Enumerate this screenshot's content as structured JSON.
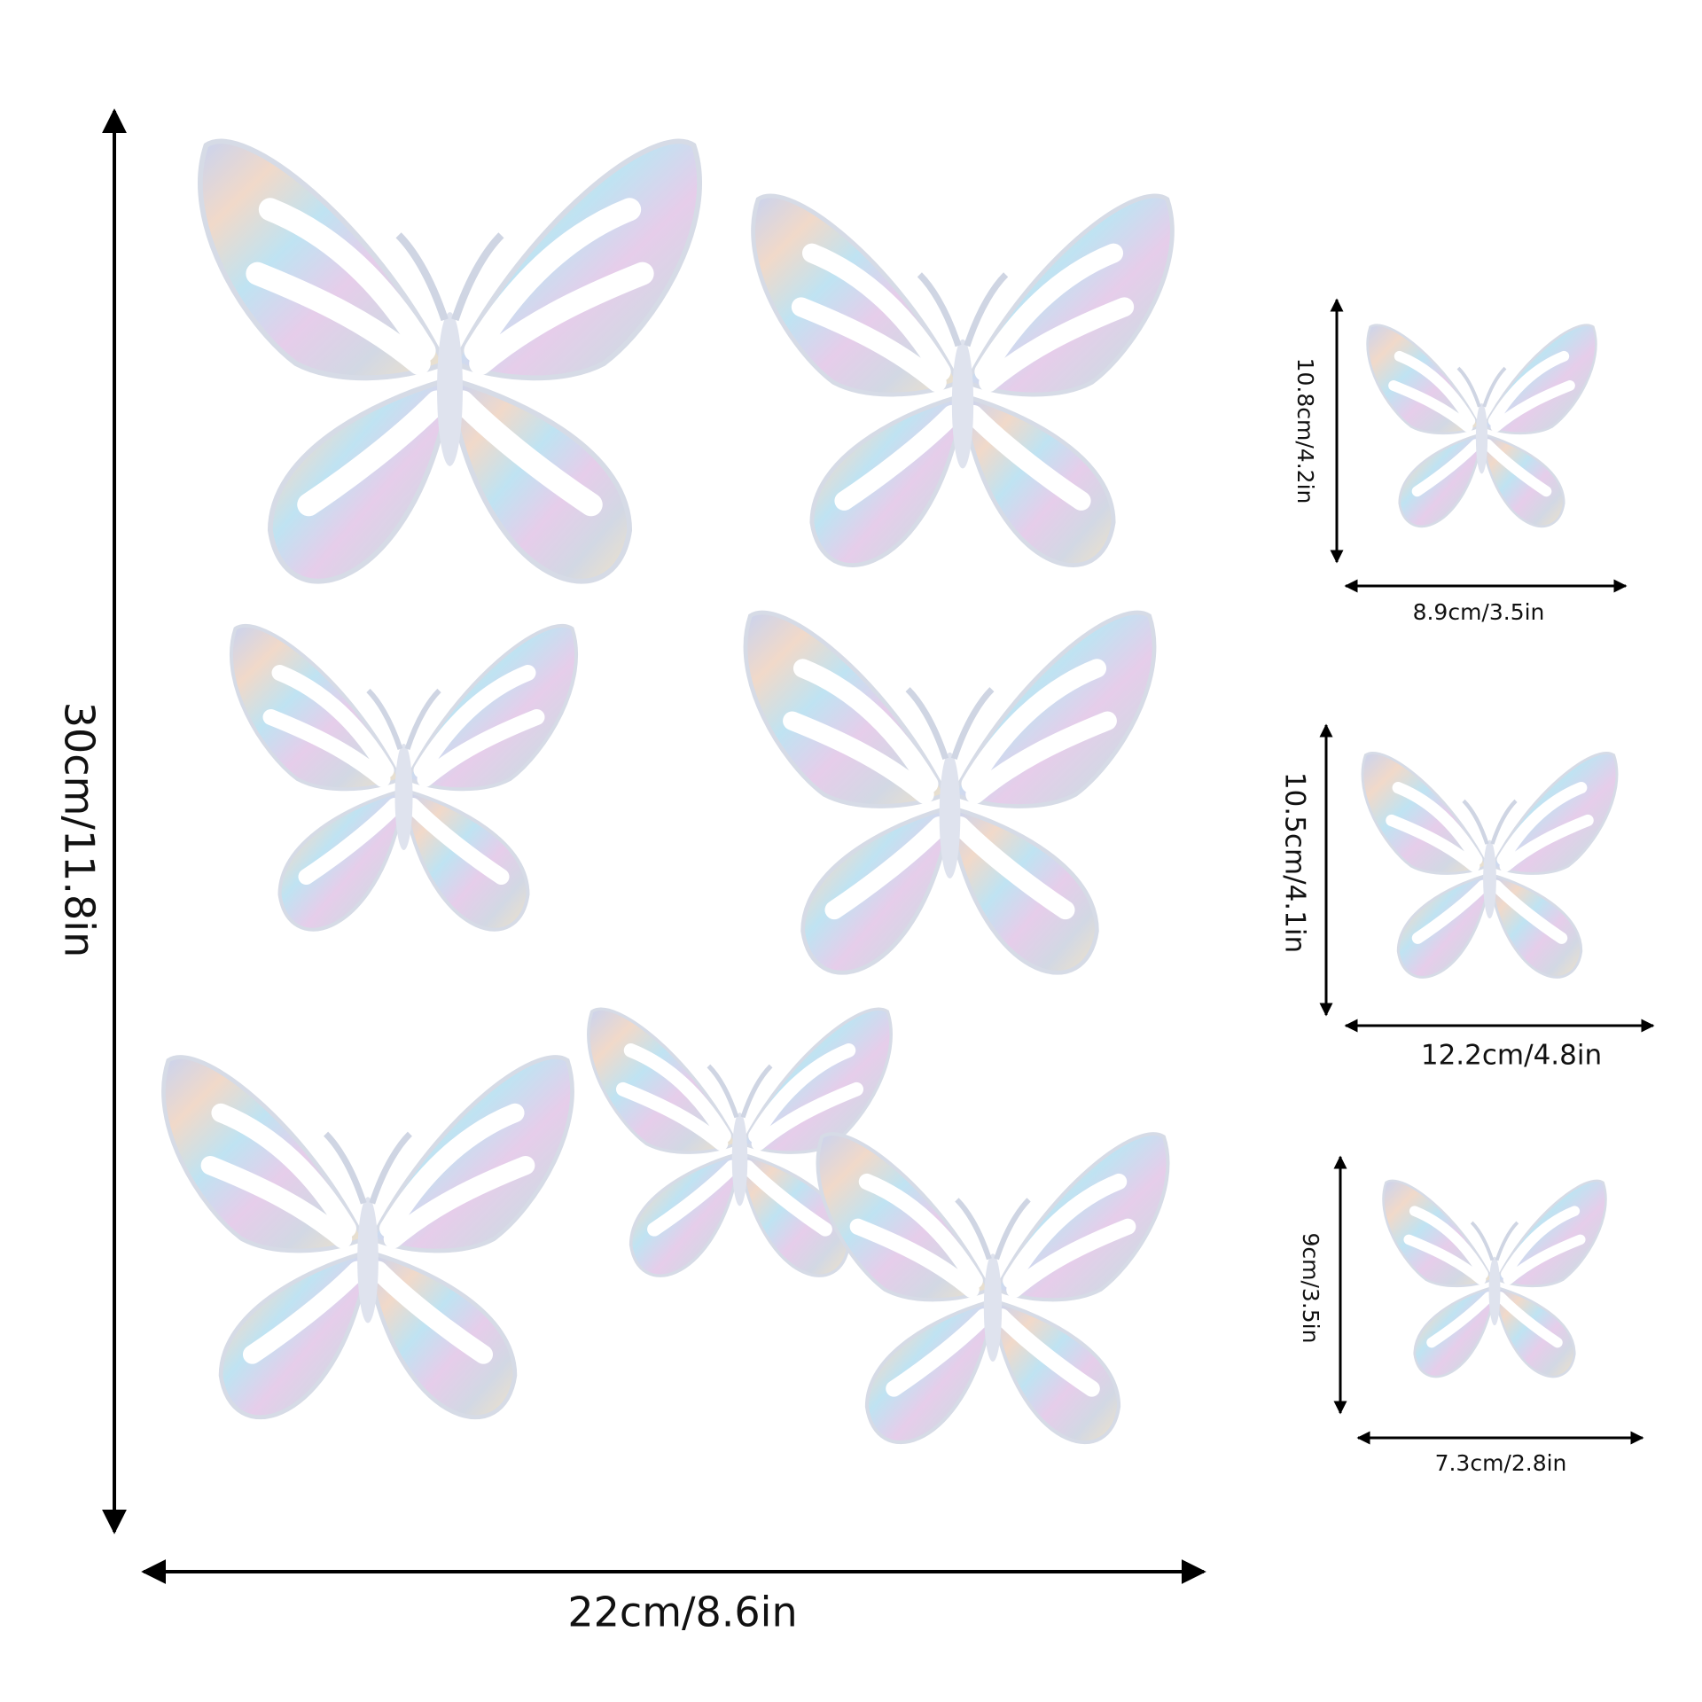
{
  "main": {
    "height": "30cm/11.8in",
    "width": "22cm/8.6in"
  },
  "samples": [
    {
      "height": "10.8cm/4.2in",
      "width": "8.9cm/3.5in"
    },
    {
      "height": "10.5cm/4.1in",
      "width": "12.2cm/4.8in"
    },
    {
      "height": "9cm/3.5in",
      "width": "7.3cm/2.8in"
    }
  ]
}
